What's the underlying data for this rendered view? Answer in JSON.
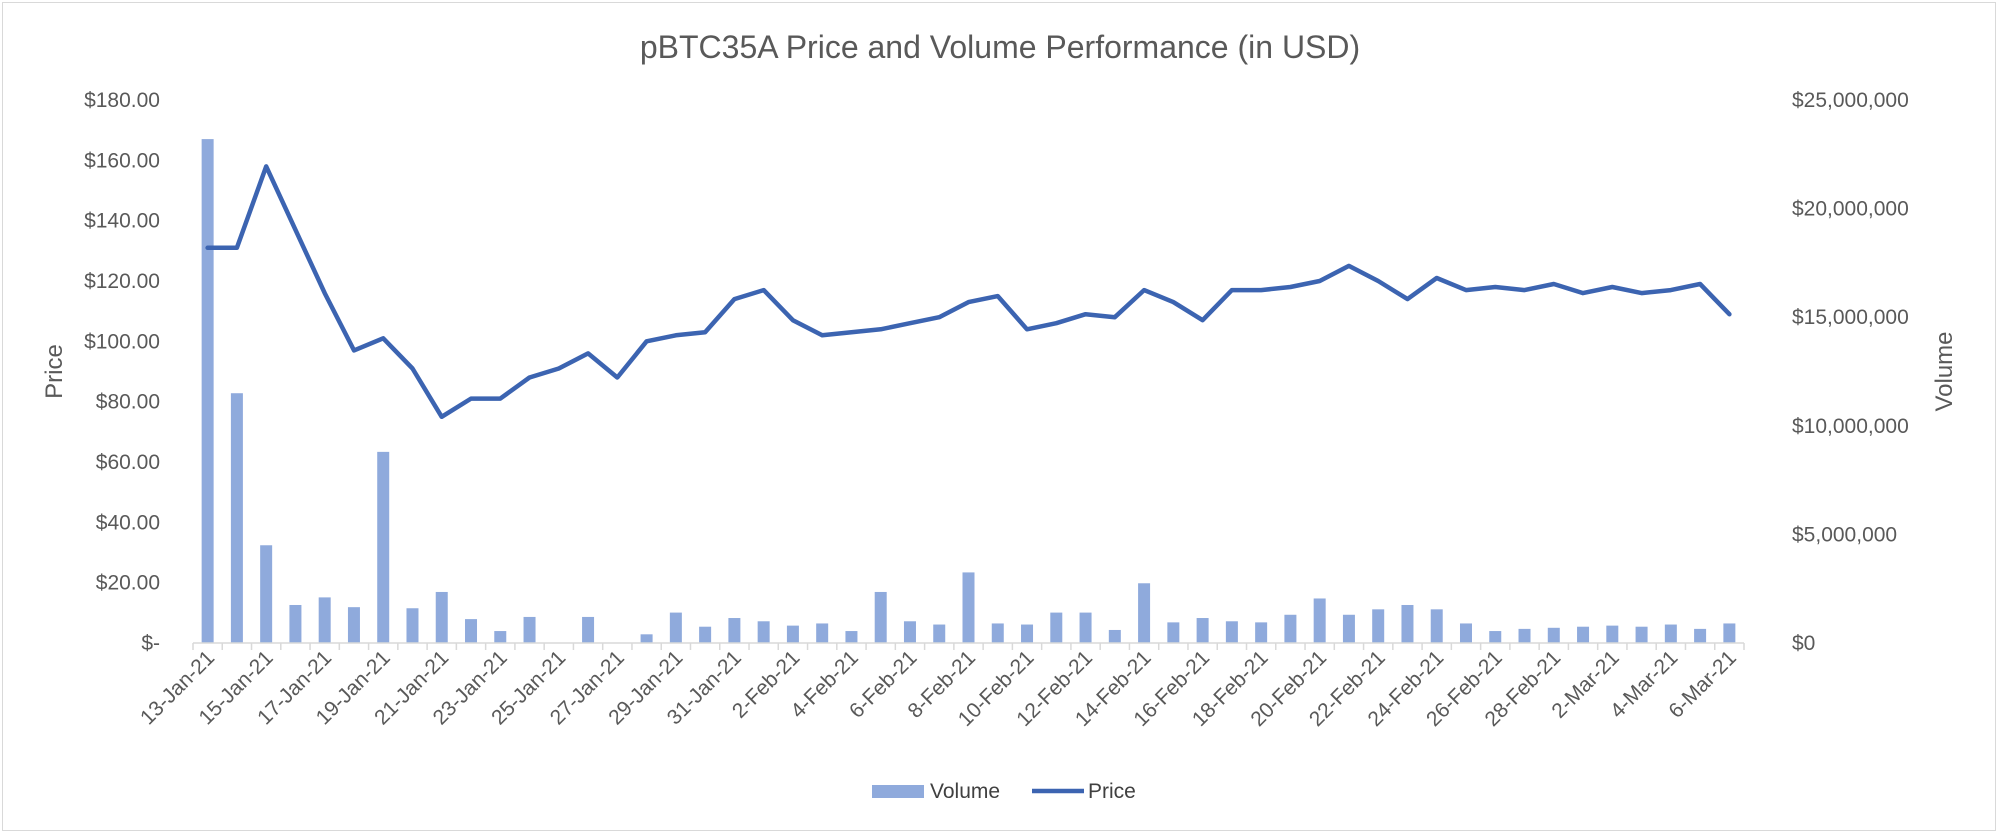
{
  "chart_data": {
    "type": "bar+line",
    "title": "pBTC35A Price and Volume Performance (in USD)",
    "y_left_label": "Price",
    "y_right_label": "Volume",
    "y_left_range": [
      0,
      180
    ],
    "y_right_range": [
      0,
      25000000
    ],
    "y_left_ticks": [
      "$-",
      "$20.00",
      "$40.00",
      "$60.00",
      "$80.00",
      "$100.00",
      "$120.00",
      "$140.00",
      "$160.00",
      "$180.00"
    ],
    "y_right_ticks": [
      "$0",
      "$5,000,000",
      "$10,000,000",
      "$15,000,000",
      "$20,000,000",
      "$25,000,000"
    ],
    "x_tick_labels": [
      "13-Jan-21",
      "15-Jan-21",
      "17-Jan-21",
      "19-Jan-21",
      "21-Jan-21",
      "23-Jan-21",
      "25-Jan-21",
      "27-Jan-21",
      "29-Jan-21",
      "31-Jan-21",
      "2-Feb-21",
      "4-Feb-21",
      "6-Feb-21",
      "8-Feb-21",
      "10-Feb-21",
      "12-Feb-21",
      "14-Feb-21",
      "16-Feb-21",
      "18-Feb-21",
      "20-Feb-21",
      "22-Feb-21",
      "24-Feb-21",
      "26-Feb-21",
      "28-Feb-21",
      "2-Mar-21",
      "4-Mar-21",
      "6-Mar-21"
    ],
    "categories": [
      "13-Jan-21",
      "14-Jan-21",
      "15-Jan-21",
      "16-Jan-21",
      "17-Jan-21",
      "18-Jan-21",
      "19-Jan-21",
      "20-Jan-21",
      "21-Jan-21",
      "22-Jan-21",
      "23-Jan-21",
      "24-Jan-21",
      "25-Jan-21",
      "26-Jan-21",
      "27-Jan-21",
      "28-Jan-21",
      "29-Jan-21",
      "30-Jan-21",
      "31-Jan-21",
      "1-Feb-21",
      "2-Feb-21",
      "3-Feb-21",
      "4-Feb-21",
      "5-Feb-21",
      "6-Feb-21",
      "7-Feb-21",
      "8-Feb-21",
      "9-Feb-21",
      "10-Feb-21",
      "11-Feb-21",
      "12-Feb-21",
      "13-Feb-21",
      "14-Feb-21",
      "15-Feb-21",
      "16-Feb-21",
      "17-Feb-21",
      "18-Feb-21",
      "19-Feb-21",
      "20-Feb-21",
      "21-Feb-21",
      "22-Feb-21",
      "23-Feb-21",
      "24-Feb-21",
      "25-Feb-21",
      "26-Feb-21",
      "27-Feb-21",
      "28-Feb-21",
      "1-Mar-21",
      "2-Mar-21",
      "3-Mar-21",
      "4-Mar-21",
      "5-Mar-21",
      "6-Mar-21"
    ],
    "series": [
      {
        "name": "Volume",
        "kind": "bar",
        "axis": "right",
        "color": "#8faadc",
        "values": [
          23200000,
          11500000,
          4500000,
          1750000,
          2100000,
          1650000,
          8800000,
          1600000,
          2350000,
          1100000,
          550000,
          1200000,
          0,
          1200000,
          0,
          400000,
          1400000,
          750000,
          1150000,
          1000000,
          800000,
          900000,
          550000,
          2350000,
          1000000,
          850000,
          3250000,
          900000,
          850000,
          1400000,
          1400000,
          600000,
          2750000,
          950000,
          1150000,
          1000000,
          950000,
          1300000,
          2050000,
          1300000,
          1550000,
          1750000,
          1550000,
          900000,
          550000,
          650000,
          700000,
          750000,
          800000,
          750000,
          850000,
          650000,
          900000
        ]
      },
      {
        "name": "Price",
        "kind": "line",
        "axis": "left",
        "color": "#3c64b1",
        "values": [
          131,
          131,
          158,
          137,
          116,
          97,
          101,
          91,
          75,
          81,
          81,
          88,
          91,
          96,
          88,
          100,
          102,
          103,
          114,
          117,
          107,
          102,
          103,
          104,
          106,
          108,
          113,
          115,
          104,
          106,
          109,
          108,
          117,
          113,
          107,
          117,
          117,
          118,
          120,
          125,
          120,
          114,
          121,
          117,
          118,
          117,
          119,
          116,
          118,
          116,
          117,
          119,
          109
        ]
      }
    ],
    "legend": {
      "position": "bottom",
      "entries": [
        "Volume",
        "Price"
      ]
    }
  }
}
